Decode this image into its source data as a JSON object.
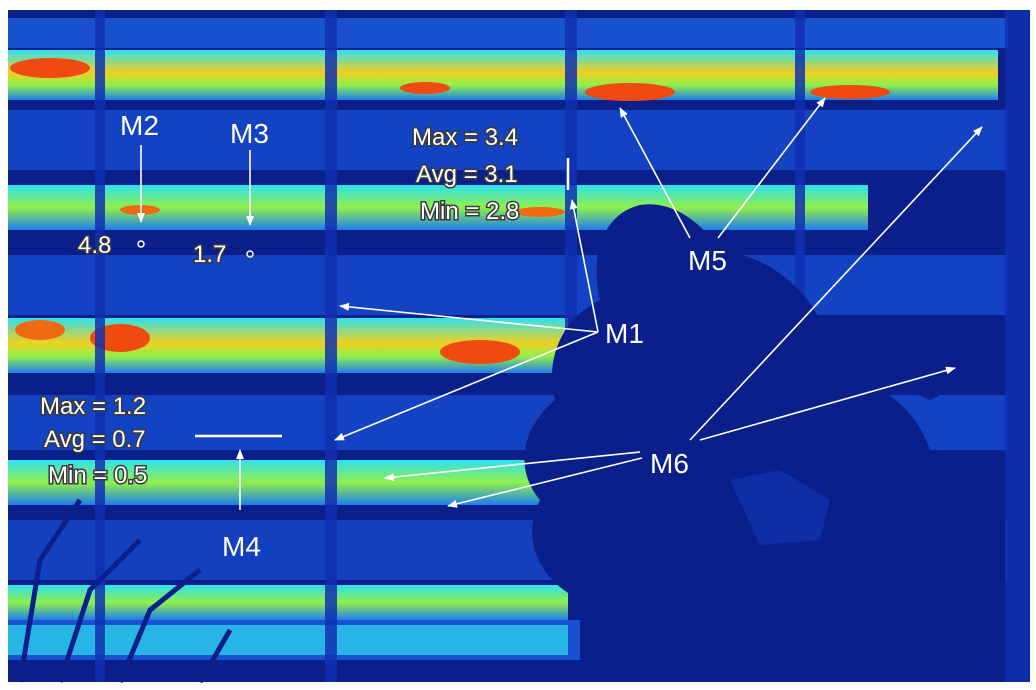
{
  "markers": {
    "m1": {
      "label": "M1",
      "max": "Max = 3.4",
      "avg": "Avg = 3.1",
      "min": "Min = 2.8"
    },
    "m2": {
      "label": "M2",
      "value": "4.8"
    },
    "m3": {
      "label": "M3",
      "value": "1.7"
    },
    "m4": {
      "label": "M4",
      "max": "Max = 1.2",
      "avg": "Avg = 0.7",
      "min": "Min = 0.5"
    },
    "m5": {
      "label": "M5"
    },
    "m6": {
      "label": "M6"
    }
  },
  "palette": {
    "frame": "#ffffff",
    "background": "#0a1f8a",
    "cold": "#0f3bd4",
    "cool": "#1e7df0",
    "mild": "#2ee0f0",
    "warm": "#8ff04a",
    "hot": "#f0d020",
    "hottest": "#f04a10",
    "annotation": "#ffffff"
  }
}
